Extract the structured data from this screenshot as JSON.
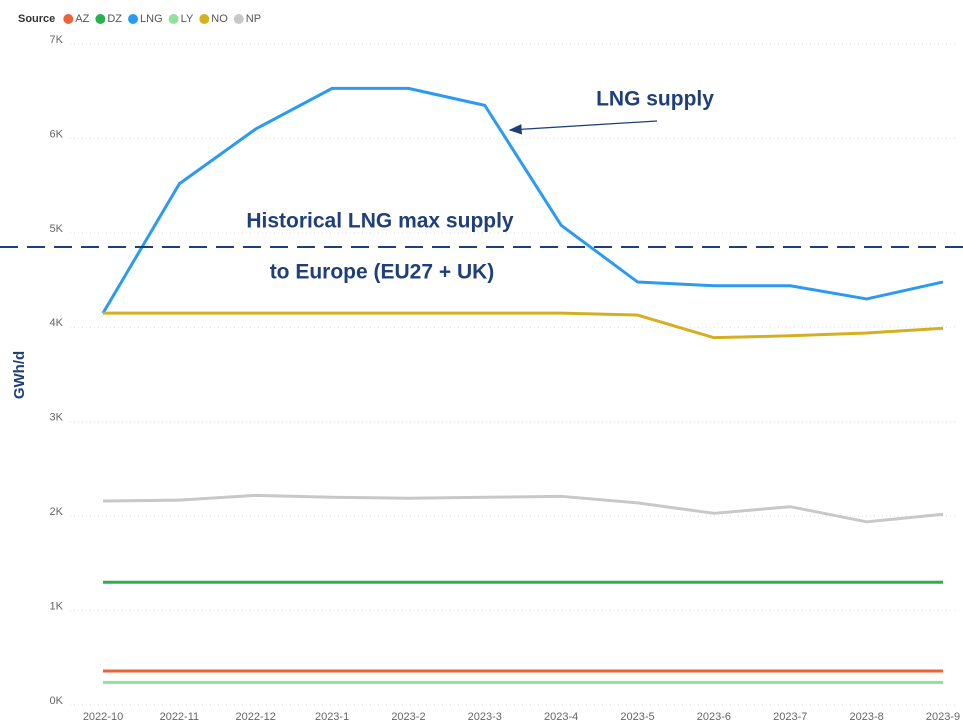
{
  "chart_data": {
    "type": "line",
    "legend_title": "Source",
    "y_label": "GWh/d",
    "categories": [
      "2022-10",
      "2022-11",
      "2022-12",
      "2023-1",
      "2023-2",
      "2023-3",
      "2023-4",
      "2023-5",
      "2023-6",
      "2023-7",
      "2023-8",
      "2023-9"
    ],
    "series": [
      {
        "name": "AZ",
        "color": "#e8643c",
        "values": [
          360,
          360,
          360,
          360,
          360,
          360,
          360,
          360,
          360,
          360,
          360,
          360
        ]
      },
      {
        "name": "DZ",
        "color": "#2ab04a",
        "values": [
          1300,
          1300,
          1300,
          1300,
          1300,
          1300,
          1300,
          1300,
          1300,
          1300,
          1300,
          1300
        ]
      },
      {
        "name": "LNG",
        "color": "#2b9af3",
        "values": [
          4150,
          5520,
          6100,
          6530,
          6530,
          6350,
          5080,
          4480,
          4440,
          4440,
          4300,
          4480
        ]
      },
      {
        "name": "LY",
        "color": "#8ee29a",
        "values": [
          240,
          240,
          240,
          240,
          240,
          240,
          240,
          240,
          240,
          240,
          240,
          240
        ]
      },
      {
        "name": "NO",
        "color": "#d4b020",
        "values": [
          4150,
          4150,
          4150,
          4150,
          4150,
          4150,
          4150,
          4130,
          3890,
          3910,
          3940,
          3990
        ]
      },
      {
        "name": "NP",
        "color": "#c8c8c8",
        "values": [
          2160,
          2170,
          2220,
          2200,
          2190,
          2200,
          2210,
          2140,
          2030,
          2100,
          1940,
          2020
        ]
      }
    ],
    "ylim": [
      0,
      7000
    ],
    "yticks": [
      {
        "value": 0,
        "label": "0K"
      },
      {
        "value": 1000,
        "label": "1K"
      },
      {
        "value": 2000,
        "label": "2K"
      },
      {
        "value": 3000,
        "label": "3K"
      },
      {
        "value": 4000,
        "label": "4K"
      },
      {
        "value": 5000,
        "label": "5K"
      },
      {
        "value": 6000,
        "label": "6K"
      },
      {
        "value": 7000,
        "label": "7K"
      }
    ],
    "grid": true,
    "reference_line": {
      "value": 4850,
      "color": "#1f3f7a",
      "label_lines": [
        "Historical LNG max supply",
        "to Europe (EU27 + UK)"
      ]
    },
    "annotation": "LNG supply"
  }
}
